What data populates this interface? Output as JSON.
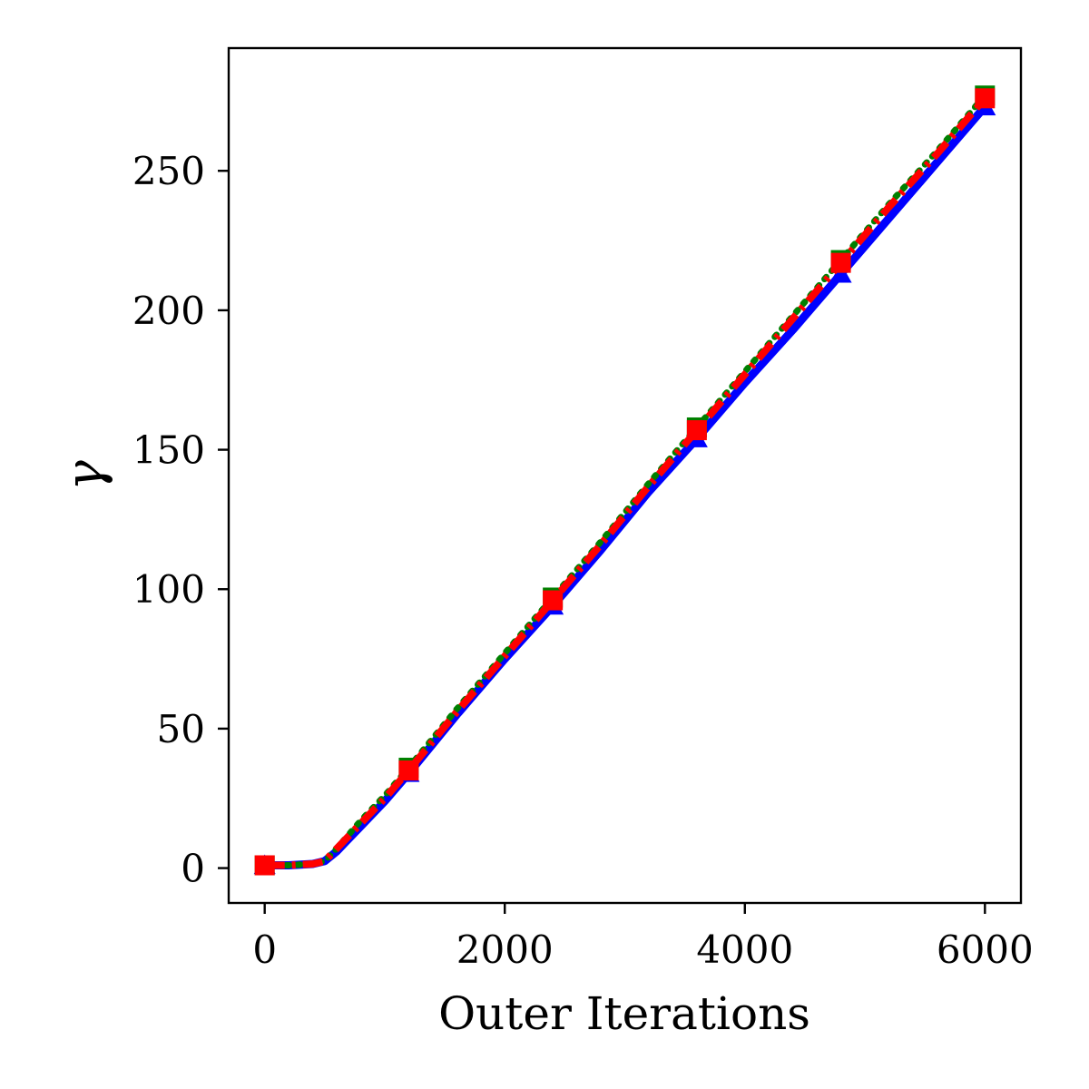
{
  "chart_data": {
    "type": "line",
    "title": "",
    "xlabel": "Outer Iterations",
    "ylabel": "γ",
    "xlim": [
      -300,
      6300
    ],
    "ylim": [
      -12.5,
      294
    ],
    "xticks": [
      0,
      2000,
      4000,
      6000
    ],
    "xtick_labels": [
      "0",
      "2000",
      "4000",
      "6000"
    ],
    "yticks": [
      0,
      50,
      100,
      150,
      200,
      250
    ],
    "ytick_labels": [
      "0",
      "50",
      "100",
      "150",
      "200",
      "250"
    ],
    "grid": false,
    "legend": false,
    "series": [
      {
        "color": "#0000ff",
        "linestyle": "solid",
        "marker": "triangle",
        "x": [
          0,
          200,
          400,
          500,
          600,
          800,
          1000,
          1200,
          1600,
          2000,
          2400,
          2800,
          3200,
          3600,
          4000,
          4400,
          4800,
          5200,
          5600,
          6000
        ],
        "y": [
          1,
          1,
          1.5,
          2.5,
          6,
          15,
          24,
          34,
          55,
          75,
          94,
          114,
          135,
          154,
          174,
          193,
          213,
          233,
          253,
          273
        ],
        "marker_x": [
          0,
          1200,
          2400,
          3600,
          4800,
          6000
        ],
        "marker_y": [
          1,
          34,
          94,
          154,
          213,
          273
        ]
      },
      {
        "color": "#008000",
        "linestyle": "dotted",
        "marker": "square",
        "x": [
          0,
          200,
          400,
          500,
          600,
          800,
          1000,
          1200,
          1600,
          2000,
          2400,
          2800,
          3200,
          3600,
          4000,
          4400,
          4800,
          5200,
          5600,
          6000
        ],
        "y": [
          1,
          1,
          1.5,
          2.5,
          7,
          17,
          26,
          36,
          57,
          77,
          97,
          117,
          138,
          158,
          178,
          198,
          218,
          238,
          257,
          277
        ],
        "marker_x": [
          0,
          1200,
          2400,
          3600,
          4800,
          6000
        ],
        "marker_y": [
          1,
          36,
          97,
          158,
          218,
          277
        ]
      },
      {
        "color": "#ff0000",
        "linestyle": "dashdot",
        "marker": "square",
        "x": [
          0,
          200,
          400,
          500,
          600,
          800,
          1000,
          1200,
          1600,
          2000,
          2400,
          2800,
          3200,
          3600,
          4000,
          4400,
          4800,
          5200,
          5600,
          6000
        ],
        "y": [
          1,
          1,
          1.5,
          2.5,
          7,
          16,
          25,
          35,
          56,
          76,
          96,
          116,
          137,
          157,
          177,
          197,
          217,
          237,
          256,
          276
        ],
        "marker_x": [
          0,
          1200,
          2400,
          3600,
          4800,
          6000
        ],
        "marker_y": [
          1,
          35,
          96,
          157,
          217,
          276
        ]
      }
    ]
  }
}
